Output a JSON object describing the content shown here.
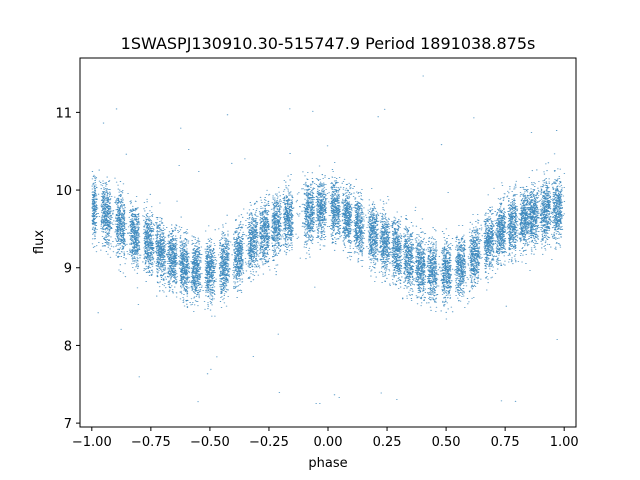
{
  "chart_data": {
    "type": "scatter",
    "title": "1SWASPJ130910.30-515747.9 Period 1891038.875s",
    "xlabel": "phase",
    "ylabel": "flux",
    "xlim": [
      -1.05,
      1.05
    ],
    "ylim": [
      6.95,
      11.7
    ],
    "xticks": [
      -1.0,
      -0.75,
      -0.5,
      -0.25,
      0.0,
      0.25,
      0.5,
      0.75,
      1.0
    ],
    "xtick_labels": [
      "−1.00",
      "−0.75",
      "−0.50",
      "−0.25",
      "0.00",
      "0.25",
      "0.50",
      "0.75",
      "1.00"
    ],
    "yticks": [
      7,
      8,
      9,
      10,
      11
    ],
    "ytick_labels": [
      "7",
      "8",
      "9",
      "10",
      "11"
    ],
    "grid": false,
    "point_color": "#1f77b4",
    "series": [
      {
        "style": "phase-folded light curve, dense vertical clusters of points",
        "mean_curve": {
          "x": [
            -1.0,
            -0.9,
            -0.8,
            -0.7,
            -0.6,
            -0.5,
            -0.4,
            -0.3,
            -0.2,
            -0.1,
            0.0,
            0.1,
            0.2,
            0.3,
            0.4,
            0.5,
            0.6,
            0.7,
            0.8,
            0.9,
            1.0
          ],
          "y": [
            9.8,
            9.6,
            9.4,
            9.2,
            9.0,
            8.95,
            9.1,
            9.4,
            9.6,
            9.7,
            9.8,
            9.6,
            9.4,
            9.2,
            9.0,
            8.95,
            9.1,
            9.4,
            9.6,
            9.7,
            9.8
          ]
        },
        "cluster_centers_x": [
          -1.0,
          -0.94,
          -0.88,
          -0.82,
          -0.76,
          -0.71,
          -0.66,
          -0.61,
          -0.56,
          -0.5,
          -0.44,
          -0.38,
          -0.32,
          -0.27,
          -0.22,
          -0.17,
          -0.08,
          -0.03,
          0.03,
          0.08,
          0.13,
          0.19,
          0.24,
          0.29,
          0.34,
          0.39,
          0.44,
          0.5,
          0.56,
          0.62,
          0.68,
          0.73,
          0.78,
          0.83,
          0.87,
          0.92,
          0.97
        ],
        "typical_spread": 0.35,
        "outlier_range": [
          7.2,
          11.5
        ]
      }
    ]
  }
}
